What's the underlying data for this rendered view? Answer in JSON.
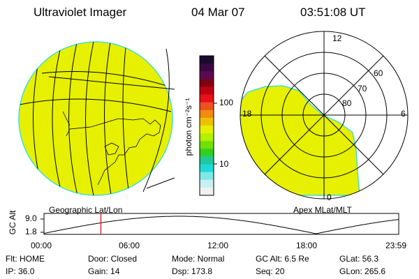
{
  "header": {
    "instrument": "Ultraviolet Imager",
    "date": "04 Mar 07",
    "time": "03:51:08 UT"
  },
  "geo_panel": {
    "label": "Geographic Lat/Lon",
    "fill_color": "#e6f000",
    "limb_color": "#40e0d0"
  },
  "colorbar": {
    "unit": "photon cm⁻²s⁻¹",
    "ticks": [
      "100",
      "10"
    ],
    "colors": [
      "#1a0a2e",
      "#3a0840",
      "#5a0a50",
      "#800014",
      "#c00010",
      "#e8101a",
      "#f05020",
      "#f08c10",
      "#f0c000",
      "#e6f000",
      "#b4f000",
      "#70e000",
      "#30d020",
      "#20c8a0",
      "#20d8d8",
      "#80e8e8",
      "#c8f0f0",
      "#f0f0f0"
    ]
  },
  "polar_panel": {
    "label": "Apex MLat/MLT",
    "mlt_labels": [
      "12",
      "18",
      "6",
      "0"
    ],
    "lat_labels": [
      "60",
      "70",
      "80"
    ]
  },
  "altitude_plot": {
    "ylabel": "GC Alt",
    "yticks": [
      "9.0",
      "1.8"
    ],
    "xticks": [
      "00:00",
      "06:00",
      "12:00",
      "18:00",
      "23:59"
    ],
    "marker_time_hours": 3.85,
    "marker_color": "#e00000"
  },
  "status": {
    "filter_label": "Flt: HOME",
    "door_label": "Door: Closed",
    "mode_label": "Mode: Normal",
    "gcalt_label": "GC Alt: 6.5 Re",
    "glat_label": "GLat:  56.3",
    "ip_label": "IP: 36.0",
    "gain_label": "Gain: 14",
    "dsp_label": "Dsp:   173.8",
    "seq_label": "Seq: 20",
    "glon_label": "GLon: 265.6"
  }
}
